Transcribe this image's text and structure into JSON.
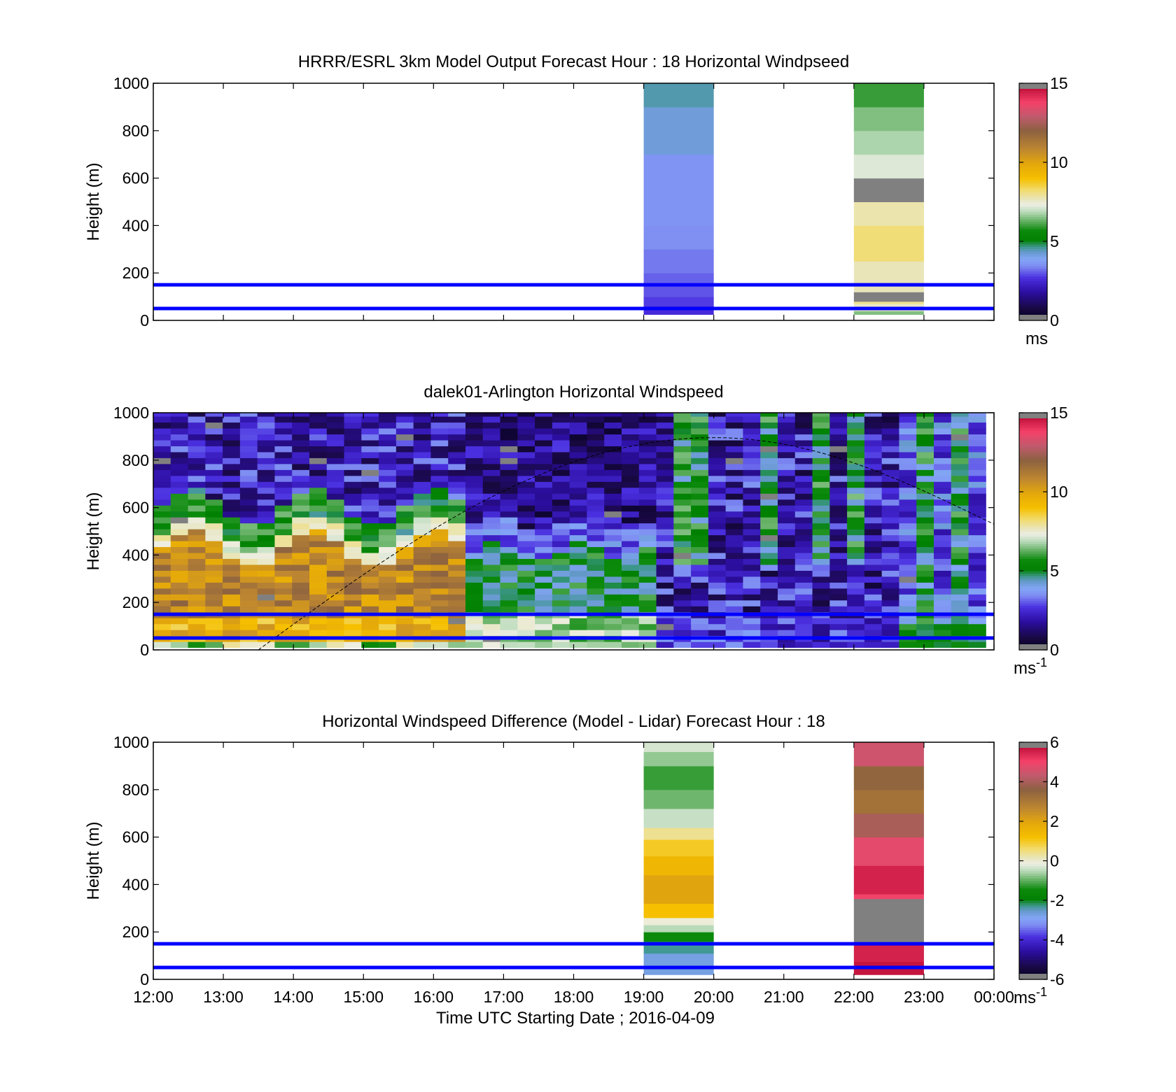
{
  "figure": {
    "xlabel": "Time UTC  Starting Date ; 2016-04-09",
    "x_ticks": [
      "12:00",
      "13:00",
      "14:00",
      "15:00",
      "16:00",
      "17:00",
      "18:00",
      "19:00",
      "20:00",
      "21:00",
      "22:00",
      "23:00",
      "00:00"
    ],
    "colors": {
      "reference_lines": "#0000ff",
      "axes": "#000000",
      "missing": "#808080"
    }
  },
  "chart_data": [
    {
      "type": "heatmap",
      "title": "HRRR/ESRL 3km Model Output   Forecast Hour : 18 Horizontal Windpseed",
      "xlabel": "",
      "ylabel": "Height (m)",
      "xlim": [
        "12:00",
        "00:00"
      ],
      "ylim": [
        0,
        1000
      ],
      "y_ticks": [
        0,
        200,
        400,
        600,
        800,
        1000
      ],
      "colorbar": {
        "min": 0,
        "max": 15,
        "ticks": [
          0,
          5,
          10,
          15
        ],
        "unit": "ms",
        "unit_sup": ""
      },
      "reference_lines_m": [
        50,
        150
      ],
      "columns": [
        {
          "start": "19:00",
          "end": "20:00",
          "cells": [
            {
              "from": 25,
              "to": 60,
              "value": 2.6
            },
            {
              "from": 60,
              "to": 100,
              "value": 2.8
            },
            {
              "from": 100,
              "to": 150,
              "value": 3.0
            },
            {
              "from": 150,
              "to": 200,
              "value": 3.1
            },
            {
              "from": 200,
              "to": 300,
              "value": 3.3
            },
            {
              "from": 300,
              "to": 400,
              "value": 3.5
            },
            {
              "from": 400,
              "to": 700,
              "value": 3.6
            },
            {
              "from": 700,
              "to": 900,
              "value": 4.2
            },
            {
              "from": 900,
              "to": 1000,
              "value": 4.5
            }
          ]
        },
        {
          "start": "22:00",
          "end": "23:00",
          "cells": [
            {
              "from": 25,
              "to": 40,
              "value": 6.5
            },
            {
              "from": 40,
              "to": 70,
              "value": 7.6
            },
            {
              "from": 70,
              "to": 80,
              "value": 8.0
            },
            {
              "from": 80,
              "to": 120,
              "value": -1
            },
            {
              "from": 120,
              "to": 250,
              "value": 7.7
            },
            {
              "from": 250,
              "to": 400,
              "value": 8.2
            },
            {
              "from": 400,
              "to": 500,
              "value": 7.8
            },
            {
              "from": 500,
              "to": 600,
              "value": -1
            },
            {
              "from": 600,
              "to": 700,
              "value": 7.2
            },
            {
              "from": 700,
              "to": 800,
              "value": 6.8
            },
            {
              "from": 800,
              "to": 900,
              "value": 6.5
            },
            {
              "from": 900,
              "to": 1000,
              "value": 6.0
            }
          ]
        }
      ]
    },
    {
      "type": "heatmap",
      "title": "dalek01-Arlington  Horizontal Windspeed",
      "xlabel": "",
      "ylabel": "Height (m)",
      "xlim": [
        "12:00",
        "00:00"
      ],
      "ylim": [
        0,
        1000
      ],
      "y_ticks": [
        0,
        200,
        400,
        600,
        800,
        1000
      ],
      "colorbar": {
        "min": 0,
        "max": 15,
        "ticks": [
          0,
          5,
          10,
          15
        ],
        "unit": "ms",
        "unit_sup": "-1"
      },
      "reference_lines_m": [
        50,
        150
      ],
      "grid": {
        "t_start": "12:00",
        "t_end": "23:53",
        "n_cols": 48,
        "z_min": 10,
        "z_max": 1000
      },
      "regimes": [
        {
          "time": "12:00 - 16:20",
          "range_m": [
            0,
            120
          ],
          "value": 9.5
        },
        {
          "time": "12:00 - 16:20",
          "range_m": [
            120,
            450
          ],
          "value": 10.5
        },
        {
          "time": "12:00 - 16:20",
          "range_m": [
            450,
            600
          ],
          "value": 5.5
        },
        {
          "time": "12:00 - 16:20",
          "range_m": [
            600,
            1000
          ],
          "value": 1.8
        },
        {
          "time": "16:20 - 19:20",
          "range_m": [
            0,
            450
          ],
          "value": 5.8
        },
        {
          "time": "16:20 - 19:20",
          "range_m": [
            450,
            1000
          ],
          "value": 1.2
        },
        {
          "time": "19:20 - 23:53",
          "range_m": [
            0,
            1000
          ],
          "value": 2.5
        },
        {
          "time": "22:40 - 23:53",
          "range_m": [
            0,
            1000
          ],
          "value": 5.0
        }
      ],
      "boundary_curve": {
        "style": "dashed",
        "start": "13:30",
        "start_m": 0,
        "peak": "20:00",
        "peak_m": 895,
        "end": "00:00",
        "end_m": 530
      }
    },
    {
      "type": "heatmap",
      "title": "Horizontal Windspeed Difference (Model - Lidar) Forecast Hour : 18",
      "xlabel": "Time UTC  Starting Date ; 2016-04-09",
      "ylabel": "Height (m)",
      "xlim": [
        "12:00",
        "00:00"
      ],
      "ylim": [
        0,
        1000
      ],
      "y_ticks": [
        0,
        200,
        400,
        600,
        800,
        1000
      ],
      "colorbar": {
        "min": -6,
        "max": 6,
        "ticks": [
          -6,
          -4,
          -2,
          0,
          2,
          4,
          6
        ],
        "unit": "ms",
        "unit_sup": "-1"
      },
      "reference_lines_m": [
        50,
        150
      ],
      "columns": [
        {
          "start": "19:00",
          "end": "20:00",
          "cells": [
            {
              "from": 20,
              "to": 110,
              "value": -2.7
            },
            {
              "from": 110,
              "to": 160,
              "value": -2.3
            },
            {
              "from": 160,
              "to": 200,
              "value": -1.5
            },
            {
              "from": 200,
              "to": 230,
              "value": -0.5
            },
            {
              "from": 230,
              "to": 260,
              "value": -0.05
            },
            {
              "from": 260,
              "to": 320,
              "value": 1.2
            },
            {
              "from": 320,
              "to": 440,
              "value": 2.0
            },
            {
              "from": 440,
              "to": 520,
              "value": 1.5
            },
            {
              "from": 520,
              "to": 590,
              "value": 1.0
            },
            {
              "from": 590,
              "to": 640,
              "value": 0.4
            },
            {
              "from": 640,
              "to": 720,
              "value": -0.4
            },
            {
              "from": 720,
              "to": 800,
              "value": -0.9
            },
            {
              "from": 800,
              "to": 900,
              "value": -1.2
            },
            {
              "from": 900,
              "to": 960,
              "value": -0.7
            },
            {
              "from": 960,
              "to": 1000,
              "value": -0.3
            }
          ]
        },
        {
          "start": "22:00",
          "end": "23:00",
          "cells": [
            {
              "from": 20,
              "to": 75,
              "value": 5.7
            },
            {
              "from": 75,
              "to": 150,
              "value": 5.5
            },
            {
              "from": 150,
              "to": 340,
              "value": -99
            },
            {
              "from": 340,
              "to": 360,
              "value": 5.0
            },
            {
              "from": 360,
              "to": 480,
              "value": 5.5
            },
            {
              "from": 480,
              "to": 600,
              "value": 4.8
            },
            {
              "from": 600,
              "to": 700,
              "value": 4.0
            },
            {
              "from": 700,
              "to": 800,
              "value": 3.2
            },
            {
              "from": 800,
              "to": 900,
              "value": 3.5
            },
            {
              "from": 900,
              "to": 1000,
              "value": 4.5
            }
          ]
        }
      ]
    }
  ]
}
